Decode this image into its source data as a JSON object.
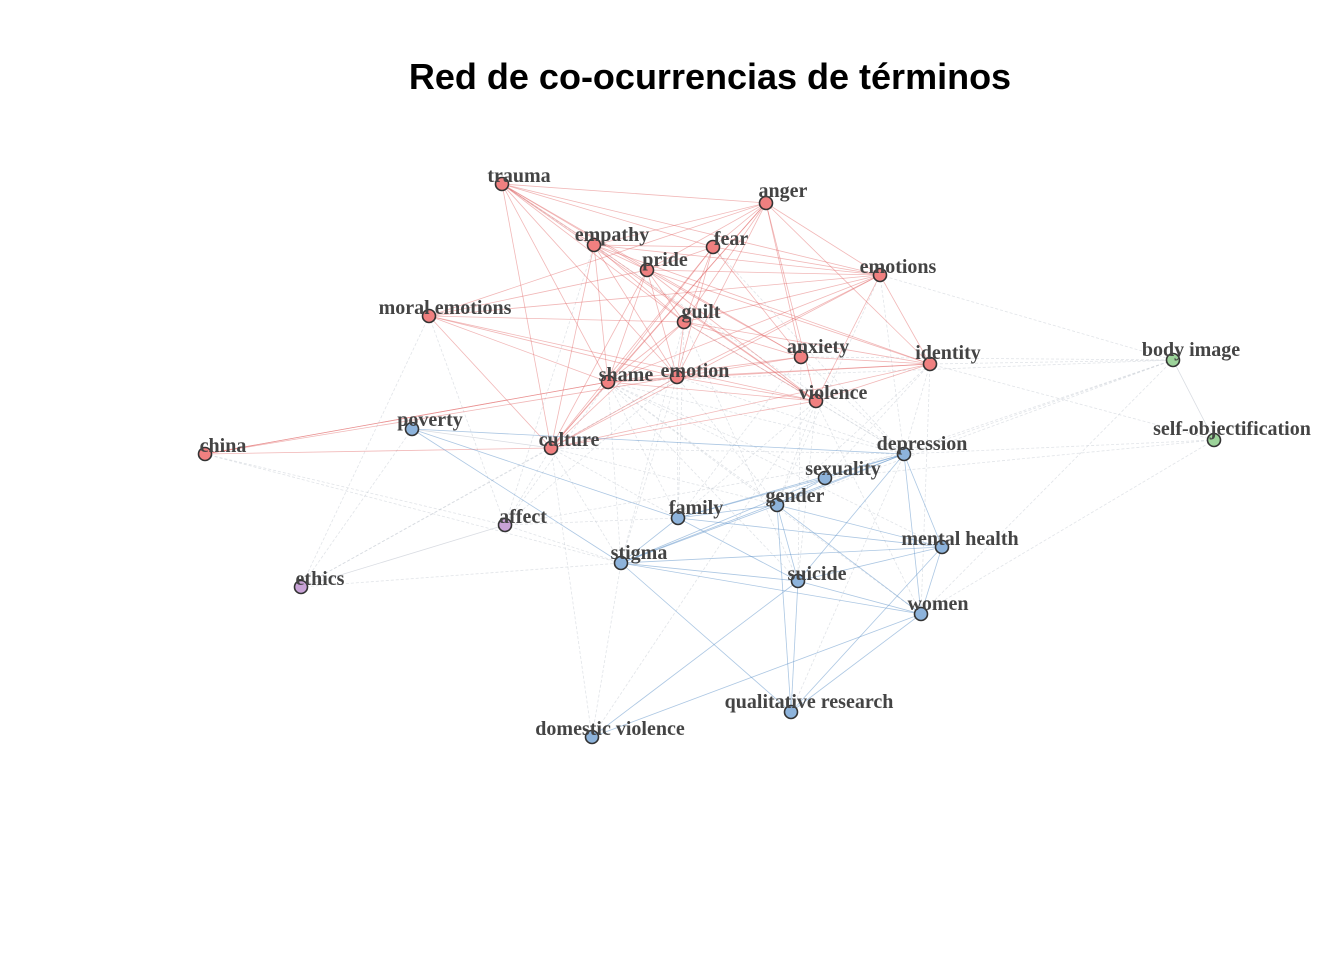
{
  "title": "Red de co-ocurrencias de términos",
  "colors": {
    "cluster1": "#F08080",
    "cluster2": "#8DB3DB",
    "cluster3": "#9CD39A",
    "cluster4": "#C8A2D6",
    "edge1": "#E06060",
    "edge2": "#5A8FC8",
    "edge_mixed": "#C9CDD6",
    "node_border": "#333333",
    "label": "#444444"
  },
  "nodes": [
    {
      "id": "trauma",
      "label": "trauma",
      "cluster": 1
    },
    {
      "id": "anger",
      "label": "anger",
      "cluster": 1
    },
    {
      "id": "empathy",
      "label": "empathy",
      "cluster": 1
    },
    {
      "id": "fear",
      "label": "fear",
      "cluster": 1
    },
    {
      "id": "pride",
      "label": "pride",
      "cluster": 1
    },
    {
      "id": "emotions",
      "label": "emotions",
      "cluster": 1
    },
    {
      "id": "moral-emotions",
      "label": "moral emotions",
      "cluster": 1
    },
    {
      "id": "guilt",
      "label": "guilt",
      "cluster": 1
    },
    {
      "id": "anxiety",
      "label": "anxiety",
      "cluster": 1
    },
    {
      "id": "identity",
      "label": "identity",
      "cluster": 1
    },
    {
      "id": "shame",
      "label": "shame",
      "cluster": 1
    },
    {
      "id": "emotion",
      "label": "emotion",
      "cluster": 1
    },
    {
      "id": "violence",
      "label": "violence",
      "cluster": 1
    },
    {
      "id": "china",
      "label": "china",
      "cluster": 1
    },
    {
      "id": "culture",
      "label": "culture",
      "cluster": 1
    },
    {
      "id": "poverty",
      "label": "poverty",
      "cluster": 2
    },
    {
      "id": "depression",
      "label": "depression",
      "cluster": 2
    },
    {
      "id": "sexuality",
      "label": "sexuality",
      "cluster": 2
    },
    {
      "id": "gender",
      "label": "gender",
      "cluster": 2
    },
    {
      "id": "family",
      "label": "family",
      "cluster": 2
    },
    {
      "id": "mental-health",
      "label": "mental health",
      "cluster": 2
    },
    {
      "id": "stigma",
      "label": "stigma",
      "cluster": 2
    },
    {
      "id": "suicide",
      "label": "suicide",
      "cluster": 2
    },
    {
      "id": "women",
      "label": "women",
      "cluster": 2
    },
    {
      "id": "qualitative-research",
      "label": "qualitative research",
      "cluster": 2
    },
    {
      "id": "domestic-violence",
      "label": "domestic violence",
      "cluster": 2
    },
    {
      "id": "body-image",
      "label": "body image",
      "cluster": 3
    },
    {
      "id": "self-objectification",
      "label": "self-objectification",
      "cluster": 3
    },
    {
      "id": "affect",
      "label": "affect",
      "cluster": 4
    },
    {
      "id": "ethics",
      "label": "ethics",
      "cluster": 4
    }
  ],
  "edges": [
    [
      "trauma",
      "empathy"
    ],
    [
      "trauma",
      "pride"
    ],
    [
      "trauma",
      "guilt"
    ],
    [
      "trauma",
      "shame"
    ],
    [
      "trauma",
      "emotion"
    ],
    [
      "trauma",
      "culture"
    ],
    [
      "trauma",
      "anger"
    ],
    [
      "trauma",
      "fear"
    ],
    [
      "trauma",
      "anxiety"
    ],
    [
      "trauma",
      "violence"
    ],
    [
      "trauma",
      "emotions"
    ],
    [
      "anger",
      "empathy"
    ],
    [
      "anger",
      "fear"
    ],
    [
      "anger",
      "pride"
    ],
    [
      "anger",
      "guilt"
    ],
    [
      "anger",
      "shame"
    ],
    [
      "anger",
      "emotion"
    ],
    [
      "anger",
      "anxiety"
    ],
    [
      "anger",
      "violence"
    ],
    [
      "anger",
      "emotions"
    ],
    [
      "anger",
      "identity"
    ],
    [
      "anger",
      "moral-emotions"
    ],
    [
      "anger",
      "culture"
    ],
    [
      "empathy",
      "pride"
    ],
    [
      "empathy",
      "guilt"
    ],
    [
      "empathy",
      "shame"
    ],
    [
      "empathy",
      "emotion"
    ],
    [
      "empathy",
      "emotions"
    ],
    [
      "empathy",
      "fear"
    ],
    [
      "empathy",
      "culture"
    ],
    [
      "empathy",
      "identity"
    ],
    [
      "empathy",
      "violence"
    ],
    [
      "fear",
      "pride"
    ],
    [
      "fear",
      "guilt"
    ],
    [
      "fear",
      "shame"
    ],
    [
      "fear",
      "emotion"
    ],
    [
      "fear",
      "emotions"
    ],
    [
      "fear",
      "anxiety"
    ],
    [
      "fear",
      "culture"
    ],
    [
      "pride",
      "guilt"
    ],
    [
      "pride",
      "shame"
    ],
    [
      "pride",
      "emotion"
    ],
    [
      "pride",
      "emotions"
    ],
    [
      "pride",
      "identity"
    ],
    [
      "pride",
      "moral-emotions"
    ],
    [
      "pride",
      "culture"
    ],
    [
      "pride",
      "violence"
    ],
    [
      "pride",
      "anxiety"
    ],
    [
      "emotions",
      "guilt"
    ],
    [
      "emotions",
      "shame"
    ],
    [
      "emotions",
      "emotion"
    ],
    [
      "emotions",
      "identity"
    ],
    [
      "emotions",
      "culture"
    ],
    [
      "emotions",
      "moral-emotions"
    ],
    [
      "emotions",
      "violence"
    ],
    [
      "moral-emotions",
      "guilt"
    ],
    [
      "moral-emotions",
      "shame"
    ],
    [
      "moral-emotions",
      "emotion"
    ],
    [
      "moral-emotions",
      "violence"
    ],
    [
      "moral-emotions",
      "culture"
    ],
    [
      "guilt",
      "shame"
    ],
    [
      "guilt",
      "emotion"
    ],
    [
      "guilt",
      "anxiety"
    ],
    [
      "guilt",
      "identity"
    ],
    [
      "guilt",
      "violence"
    ],
    [
      "guilt",
      "culture"
    ],
    [
      "anxiety",
      "shame"
    ],
    [
      "anxiety",
      "emotion"
    ],
    [
      "anxiety",
      "identity"
    ],
    [
      "identity",
      "shame"
    ],
    [
      "identity",
      "emotion"
    ],
    [
      "identity",
      "violence"
    ],
    [
      "identity",
      "culture"
    ],
    [
      "shame",
      "emotion"
    ],
    [
      "shame",
      "violence"
    ],
    [
      "shame",
      "culture"
    ],
    [
      "shame",
      "china"
    ],
    [
      "emotion",
      "violence"
    ],
    [
      "emotion",
      "culture"
    ],
    [
      "violence",
      "culture"
    ],
    [
      "china",
      "culture"
    ],
    [
      "china",
      "emotion"
    ],
    [
      "china",
      "shame"
    ],
    [
      "poverty",
      "culture"
    ],
    [
      "poverty",
      "depression"
    ],
    [
      "poverty",
      "stigma"
    ],
    [
      "poverty",
      "family"
    ],
    [
      "depression",
      "sexuality"
    ],
    [
      "depression",
      "gender"
    ],
    [
      "depression",
      "family"
    ],
    [
      "depression",
      "mental-health"
    ],
    [
      "depression",
      "suicide"
    ],
    [
      "depression",
      "women"
    ],
    [
      "depression",
      "stigma"
    ],
    [
      "sexuality",
      "gender"
    ],
    [
      "sexuality",
      "family"
    ],
    [
      "sexuality",
      "stigma"
    ],
    [
      "gender",
      "family"
    ],
    [
      "gender",
      "mental-health"
    ],
    [
      "gender",
      "suicide"
    ],
    [
      "gender",
      "women"
    ],
    [
      "gender",
      "stigma"
    ],
    [
      "gender",
      "qualitative-research"
    ],
    [
      "family",
      "stigma"
    ],
    [
      "family",
      "suicide"
    ],
    [
      "family",
      "mental-health"
    ],
    [
      "mental-health",
      "stigma"
    ],
    [
      "mental-health",
      "suicide"
    ],
    [
      "mental-health",
      "women"
    ],
    [
      "mental-health",
      "qualitative-research"
    ],
    [
      "stigma",
      "suicide"
    ],
    [
      "stigma",
      "women"
    ],
    [
      "stigma",
      "qualitative-research"
    ],
    [
      "suicide",
      "women"
    ],
    [
      "suicide",
      "qualitative-research"
    ],
    [
      "suicide",
      "domestic-violence"
    ],
    [
      "women",
      "qualitative-research"
    ],
    [
      "women",
      "domestic-violence"
    ],
    [
      "body-image",
      "self-objectification"
    ],
    [
      "affect",
      "ethics"
    ]
  ],
  "mixed_edges": [
    [
      "shame",
      "depression"
    ],
    [
      "shame",
      "stigma"
    ],
    [
      "shame",
      "family"
    ],
    [
      "shame",
      "gender"
    ],
    [
      "shame",
      "suicide"
    ],
    [
      "shame",
      "women"
    ],
    [
      "shame",
      "mental-health"
    ],
    [
      "shame",
      "sexuality"
    ],
    [
      "shame",
      "affect"
    ],
    [
      "shame",
      "body-image"
    ],
    [
      "guilt",
      "depression"
    ],
    [
      "guilt",
      "stigma"
    ],
    [
      "guilt",
      "family"
    ],
    [
      "guilt",
      "suicide"
    ],
    [
      "emotion",
      "family"
    ],
    [
      "emotion",
      "stigma"
    ],
    [
      "emotion",
      "gender"
    ],
    [
      "emotion",
      "depression"
    ],
    [
      "emotion",
      "affect"
    ],
    [
      "emotion",
      "ethics"
    ],
    [
      "emotions",
      "depression"
    ],
    [
      "emotions",
      "body-image"
    ],
    [
      "emotions",
      "gender"
    ],
    [
      "identity",
      "body-image"
    ],
    [
      "identity",
      "self-objectification"
    ],
    [
      "identity",
      "depression"
    ],
    [
      "identity",
      "gender"
    ],
    [
      "identity",
      "sexuality"
    ],
    [
      "identity",
      "women"
    ],
    [
      "violence",
      "depression"
    ],
    [
      "violence",
      "women"
    ],
    [
      "violence",
      "domestic-violence"
    ],
    [
      "violence",
      "gender"
    ],
    [
      "violence",
      "family"
    ],
    [
      "violence",
      "suicide"
    ],
    [
      "anxiety",
      "depression"
    ],
    [
      "anxiety",
      "body-image"
    ],
    [
      "anxiety",
      "suicide"
    ],
    [
      "anxiety",
      "family"
    ],
    [
      "culture",
      "stigma"
    ],
    [
      "culture",
      "family"
    ],
    [
      "culture",
      "gender"
    ],
    [
      "culture",
      "domestic-violence"
    ],
    [
      "culture",
      "affect"
    ],
    [
      "culture",
      "ethics"
    ],
    [
      "culture",
      "depression"
    ],
    [
      "trauma",
      "depression"
    ],
    [
      "fear",
      "depression"
    ],
    [
      "empathy",
      "affect"
    ],
    [
      "moral-emotions",
      "affect"
    ],
    [
      "moral-emotions",
      "ethics"
    ],
    [
      "body-image",
      "depression"
    ],
    [
      "body-image",
      "women"
    ],
    [
      "body-image",
      "gender"
    ],
    [
      "body-image",
      "sexuality"
    ],
    [
      "self-objectification",
      "women"
    ],
    [
      "self-objectification",
      "depression"
    ],
    [
      "self-objectification",
      "sexuality"
    ],
    [
      "affect",
      "stigma"
    ],
    [
      "affect",
      "family"
    ],
    [
      "affect",
      "depression"
    ],
    [
      "ethics",
      "stigma"
    ],
    [
      "ethics",
      "poverty"
    ],
    [
      "china",
      "stigma"
    ],
    [
      "china",
      "affect"
    ],
    [
      "domestic-violence",
      "stigma"
    ],
    [
      "qualitative-research",
      "depression"
    ]
  ]
}
